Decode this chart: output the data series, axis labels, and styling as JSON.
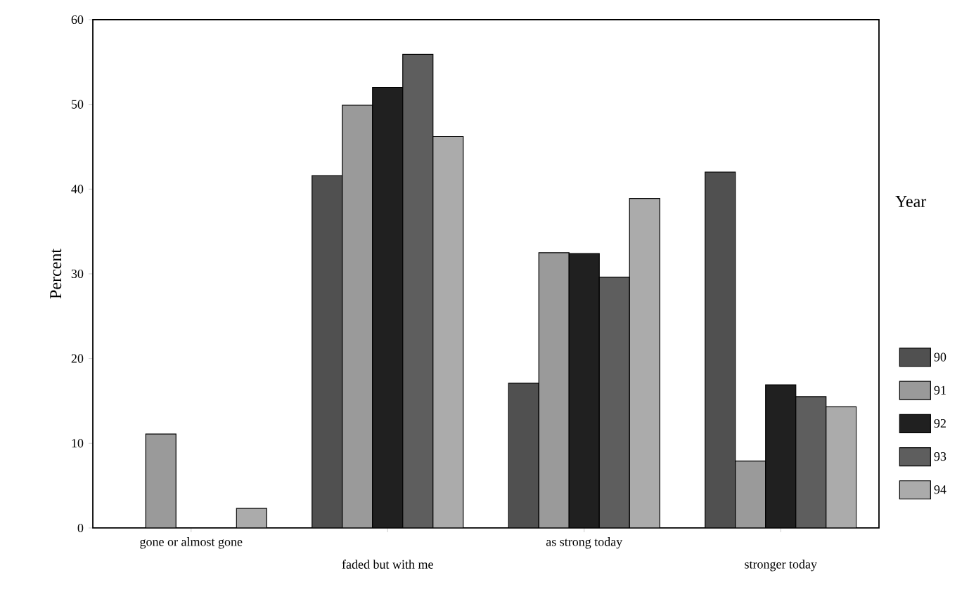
{
  "chart_data": {
    "type": "bar",
    "ylabel": "Percent",
    "legend_title": "Year",
    "legend": "right",
    "categories": [
      "gone or almost gone",
      "faded but with me",
      "as strong today",
      "stronger today"
    ],
    "series": [
      {
        "name": "90",
        "color": "#505050",
        "values": [
          0,
          41.6,
          17.1,
          42.0
        ]
      },
      {
        "name": "91",
        "color": "#9a9a9a",
        "values": [
          11.1,
          49.9,
          32.5,
          7.9
        ]
      },
      {
        "name": "92",
        "color": "#202020",
        "values": [
          0,
          52.0,
          32.4,
          16.9
        ]
      },
      {
        "name": "93",
        "color": "#5e5e5e",
        "values": [
          0,
          55.9,
          29.6,
          15.5
        ]
      },
      {
        "name": "94",
        "color": "#ababab",
        "values": [
          2.3,
          46.2,
          38.9,
          14.3
        ]
      }
    ],
    "ylim": [
      0,
      60
    ],
    "yticks": [
      0,
      10,
      20,
      30,
      40,
      50,
      60
    ],
    "grid": false
  }
}
